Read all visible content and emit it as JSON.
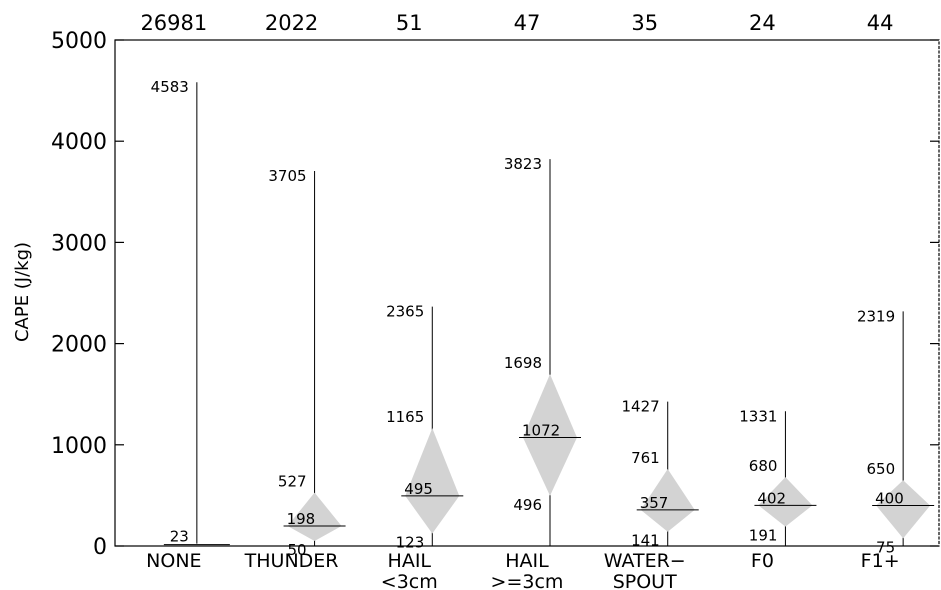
{
  "chart_data": {
    "type": "boxplot",
    "ylabel": "CAPE (J/kg)",
    "ylim": [
      0,
      5000
    ],
    "yticks": [
      "0",
      "1000",
      "2000",
      "3000",
      "4000",
      "5000"
    ],
    "categories": [
      {
        "label1": "NONE",
        "label2": "",
        "count": "26981",
        "max": 4583,
        "q3": null,
        "median": null,
        "q1": null,
        "min": 23,
        "labels": {
          "max": "4583",
          "q3": "",
          "median": "",
          "q1": "",
          "min": "23"
        }
      },
      {
        "label1": "THUNDER",
        "label2": "",
        "count": "2022",
        "max": 3705,
        "q3": 527,
        "median": 198,
        "q1": 50,
        "min": null,
        "labels": {
          "max": "3705",
          "q3": "527",
          "median": "198",
          "q1": "50",
          "min": ""
        }
      },
      {
        "label1": "HAIL",
        "label2": "<3cm",
        "count": "51",
        "max": 2365,
        "q3": 1165,
        "median": 495,
        "q1": 123,
        "min": null,
        "labels": {
          "max": "2365",
          "q3": "1165",
          "median": "495",
          "q1": "123",
          "min": ""
        }
      },
      {
        "label1": "HAIL",
        "label2": ">=3cm",
        "count": "47",
        "max": 3823,
        "q3": 1698,
        "median": 1072,
        "q1": 496,
        "min": null,
        "labels": {
          "max": "3823",
          "q3": "1698",
          "median": "1072",
          "q1": "496",
          "min": ""
        }
      },
      {
        "label1": "WATER−",
        "label2": "SPOUT",
        "count": "35",
        "max": 1427,
        "q3": 761,
        "median": 357,
        "q1": 141,
        "min": null,
        "labels": {
          "max": "1427",
          "q3": "761",
          "median": "357",
          "q1": "141",
          "min": ""
        }
      },
      {
        "label1": "F0",
        "label2": "",
        "count": "24",
        "max": 1331,
        "q3": 680,
        "median": 402,
        "q1": 191,
        "min": null,
        "labels": {
          "max": "1331",
          "q3": "680",
          "median": "402",
          "q1": "191",
          "min": ""
        }
      },
      {
        "label1": "F1+",
        "label2": "",
        "count": "44",
        "max": 2319,
        "q3": 650,
        "median": 400,
        "q1": 75,
        "min": null,
        "labels": {
          "max": "2319",
          "q3": "650",
          "median": "400",
          "q1": "75",
          "min": ""
        }
      }
    ],
    "box_color": "#d3d3d3",
    "line_color": "#000000"
  }
}
